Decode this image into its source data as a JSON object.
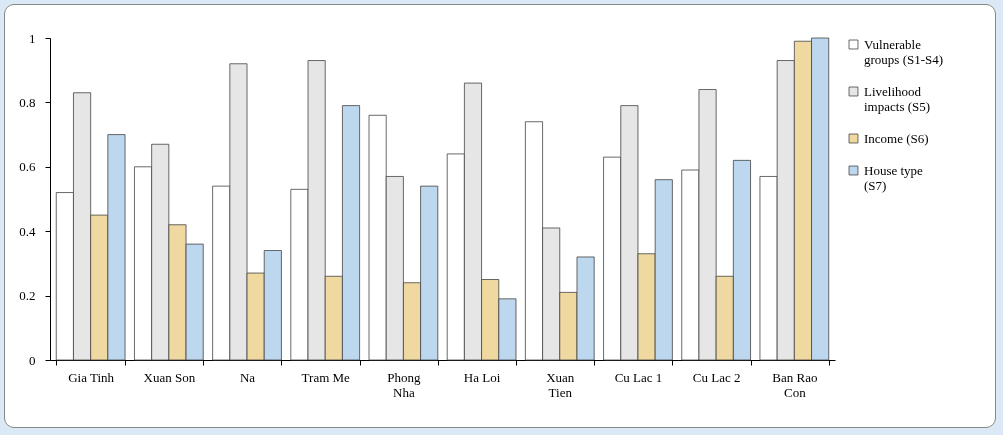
{
  "chart_data": {
    "type": "bar",
    "categories": [
      "Gia Tinh",
      "Xuan Son",
      "Na",
      "Tram Me",
      "Phong Nha",
      "Ha Loi",
      "Xuan Tien",
      "Cu Lac 1",
      "Cu Lac 2",
      "Ban Rao Con"
    ],
    "series": [
      {
        "name": "Vulnerable groups (S1-S4)",
        "color": "#ffffff",
        "values": [
          0.52,
          0.6,
          0.54,
          0.53,
          0.76,
          0.64,
          0.74,
          0.63,
          0.59,
          0.57
        ]
      },
      {
        "name": "Livelihood impacts (S5)",
        "color": "#e6e6e6",
        "values": [
          0.83,
          0.67,
          0.92,
          0.93,
          0.57,
          0.86,
          0.41,
          0.79,
          0.84,
          0.93
        ]
      },
      {
        "name": "Income (S6)",
        "color": "#f0d9a0",
        "values": [
          0.45,
          0.42,
          0.27,
          0.26,
          0.24,
          0.25,
          0.21,
          0.33,
          0.26,
          0.99
        ]
      },
      {
        "name": "House type (S7)",
        "color": "#bdd7ee",
        "values": [
          0.7,
          0.36,
          0.34,
          0.79,
          0.54,
          0.19,
          0.32,
          0.56,
          0.62,
          1.0
        ]
      }
    ],
    "ylim": [
      0,
      1
    ],
    "yticks": [
      0,
      0.2,
      0.4,
      0.6,
      0.8,
      1
    ],
    "grid": false,
    "legend": "right"
  }
}
